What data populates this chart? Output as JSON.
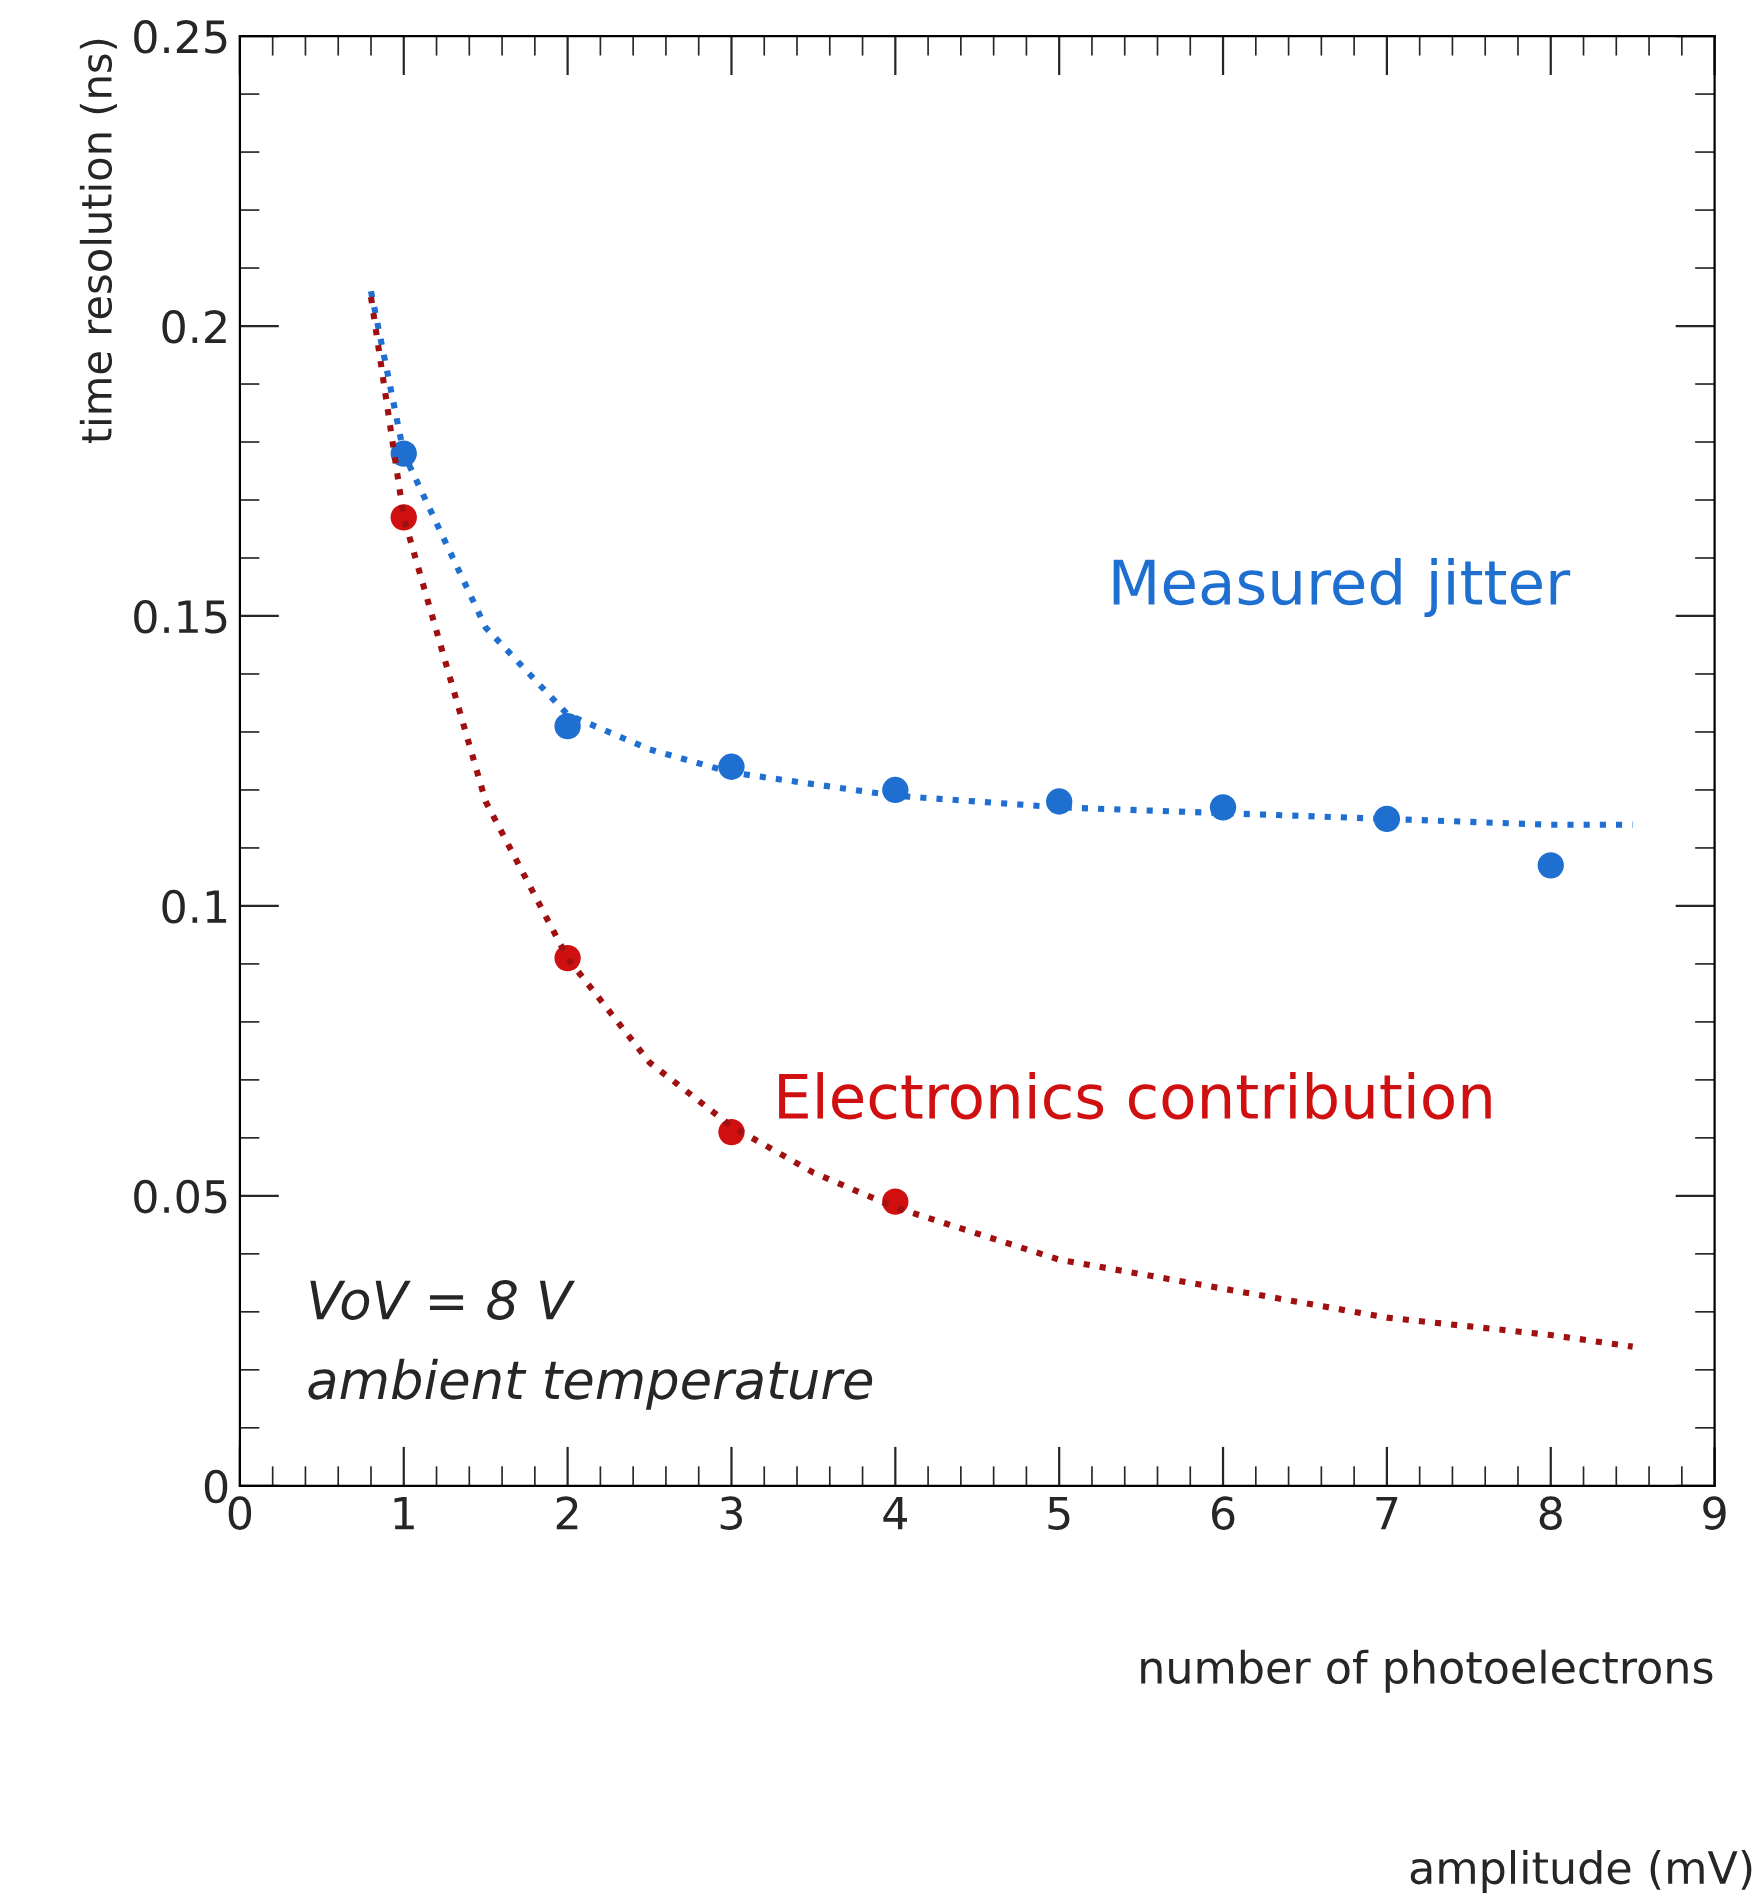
{
  "chart_data": {
    "type": "scatter",
    "xlabel": "number of photoelectrons",
    "ylabel": "time resolution (ns)",
    "xlim": [
      0,
      9
    ],
    "xticks": [
      0,
      1,
      2,
      3,
      4,
      5,
      6,
      7,
      8,
      9
    ],
    "ylim": [
      0,
      0.25
    ],
    "yticks": [
      0,
      0.05,
      0.1,
      0.15,
      0.2,
      0.25
    ],
    "grid": false,
    "legend": false,
    "marker": "circle",
    "annotations": [
      "VoV = 8 V",
      "ambient temperature",
      "amplitude (mV)"
    ],
    "series": [
      {
        "type": "line",
        "color": "#1f6fd1",
        "line_style": "dotted",
        "marker": "none",
        "x": [
          0.8,
          1,
          1.5,
          2,
          2.5,
          3,
          4,
          5,
          6,
          7,
          8,
          8.5
        ],
        "values": [
          0.206,
          0.178,
          0.148,
          0.133,
          0.127,
          0.123,
          0.119,
          0.117,
          0.116,
          0.115,
          0.114,
          0.114
        ]
      },
      {
        "type": "line",
        "color": "#a01010",
        "line_style": "dotted",
        "marker": "none",
        "x": [
          0.8,
          1,
          1.5,
          2,
          2.5,
          3,
          3.5,
          4,
          5,
          6,
          7,
          8,
          8.5
        ],
        "values": [
          0.205,
          0.167,
          0.118,
          0.091,
          0.073,
          0.062,
          0.054,
          0.048,
          0.039,
          0.034,
          0.029,
          0.026,
          0.024
        ]
      },
      {
        "name": "Measured jitter",
        "color": "#1f6fd1",
        "x": [
          1,
          2,
          3,
          4,
          5,
          6,
          7,
          8
        ],
        "values": [
          0.178,
          0.131,
          0.124,
          0.12,
          0.118,
          0.117,
          0.115,
          0.107
        ]
      },
      {
        "name": "Electronics contribution",
        "color": "#d01010",
        "x": [
          1,
          2,
          3,
          4
        ],
        "values": [
          0.167,
          0.091,
          0.061,
          0.049
        ]
      }
    ]
  }
}
